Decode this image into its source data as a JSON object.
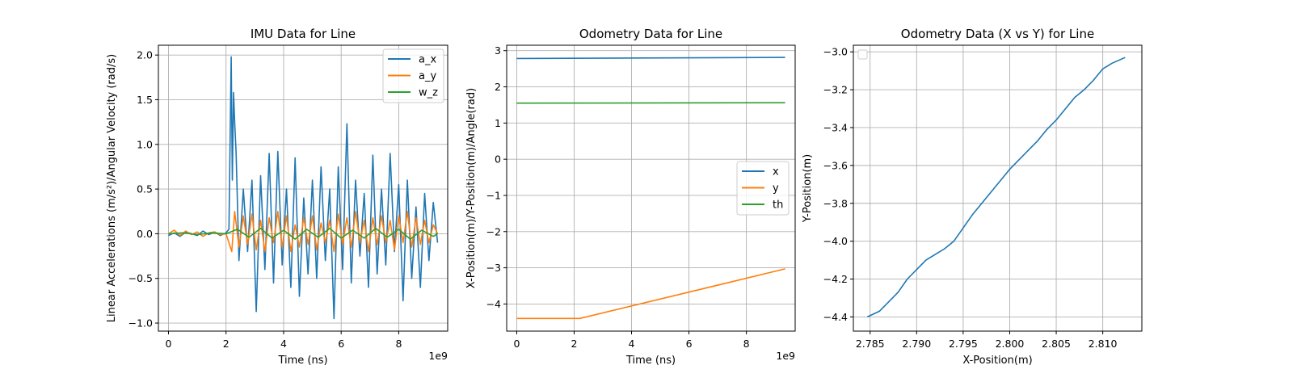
{
  "chart_data": [
    {
      "type": "line",
      "title": "IMU Data for Line",
      "xlabel": "Time (ns)",
      "ylabel": "Linear Accelerations (m/s²)/Angular Velocity (rad/s)",
      "xlim": [
        -0.35,
        9.7
      ],
      "ylim": [
        -1.09,
        2.11
      ],
      "x_scale_note": "1e9",
      "xticks": [
        0,
        2,
        4,
        6,
        8
      ],
      "xtick_labels": [
        "0",
        "2",
        "4",
        "6",
        "8"
      ],
      "yticks": [
        -1.0,
        -0.5,
        0.0,
        0.5,
        1.0,
        1.5,
        2.0
      ],
      "ytick_labels": [
        "−1.0",
        "−0.5",
        "0.0",
        "0.5",
        "1.0",
        "1.5",
        "2.0"
      ],
      "grid": true,
      "legend_position": "top-right",
      "series": [
        {
          "name": "a_x",
          "color": "#1f77b4",
          "x": [
            0,
            0.2,
            0.4,
            0.6,
            0.8,
            1.0,
            1.2,
            1.4,
            1.6,
            1.8,
            2.0,
            2.1,
            2.18,
            2.22,
            2.26,
            2.3,
            2.35,
            2.45,
            2.6,
            2.75,
            2.9,
            3.05,
            3.2,
            3.35,
            3.5,
            3.65,
            3.8,
            3.95,
            4.1,
            4.25,
            4.4,
            4.55,
            4.7,
            4.85,
            5.0,
            5.15,
            5.3,
            5.45,
            5.6,
            5.75,
            5.9,
            6.05,
            6.2,
            6.35,
            6.5,
            6.65,
            6.8,
            6.95,
            7.1,
            7.25,
            7.4,
            7.55,
            7.7,
            7.85,
            8.0,
            8.15,
            8.3,
            8.45,
            8.6,
            8.75,
            8.9,
            9.05,
            9.2,
            9.35
          ],
          "y": [
            -0.02,
            0.01,
            -0.03,
            0.02,
            0.0,
            -0.02,
            0.03,
            -0.01,
            0.02,
            -0.02,
            0.01,
            0.05,
            1.98,
            0.6,
            1.58,
            1.25,
            0.9,
            -0.3,
            0.5,
            -0.2,
            0.6,
            -0.87,
            0.65,
            -0.4,
            0.9,
            -0.55,
            0.92,
            -0.35,
            0.5,
            -0.6,
            0.85,
            -0.7,
            0.4,
            -0.45,
            0.6,
            -0.5,
            0.75,
            -0.3,
            0.5,
            -0.95,
            0.75,
            -0.4,
            1.23,
            -0.55,
            0.6,
            -0.25,
            0.45,
            -0.6,
            0.88,
            -0.45,
            0.5,
            -0.35,
            0.9,
            -0.2,
            0.55,
            -0.75,
            0.6,
            -0.5,
            0.3,
            -0.6,
            0.45,
            -0.3,
            0.35,
            -0.1
          ]
        },
        {
          "name": "a_y",
          "color": "#ff7f0e",
          "x": [
            0,
            0.2,
            0.4,
            0.6,
            0.8,
            1.0,
            1.2,
            1.4,
            1.6,
            1.8,
            2.0,
            2.2,
            2.3,
            2.45,
            2.6,
            2.75,
            2.9,
            3.05,
            3.2,
            3.35,
            3.5,
            3.65,
            3.8,
            3.95,
            4.1,
            4.25,
            4.4,
            4.55,
            4.7,
            4.85,
            5.0,
            5.15,
            5.3,
            5.45,
            5.6,
            5.75,
            5.9,
            6.05,
            6.2,
            6.35,
            6.5,
            6.65,
            6.8,
            6.95,
            7.1,
            7.25,
            7.4,
            7.55,
            7.7,
            7.85,
            8.0,
            8.15,
            8.3,
            8.45,
            8.6,
            8.75,
            8.9,
            9.05,
            9.2,
            9.35
          ],
          "y": [
            0.0,
            0.04,
            -0.02,
            0.03,
            -0.01,
            0.02,
            -0.03,
            0.01,
            0.02,
            -0.01,
            0.0,
            -0.2,
            0.25,
            -0.15,
            0.2,
            -0.12,
            0.22,
            -0.18,
            0.15,
            -0.2,
            0.18,
            -0.1,
            0.25,
            -0.15,
            0.2,
            -0.2,
            0.1,
            -0.15,
            0.18,
            -0.12,
            0.2,
            -0.18,
            0.12,
            -0.1,
            0.15,
            -0.2,
            0.22,
            -0.12,
            0.18,
            -0.15,
            0.25,
            -0.1,
            0.15,
            -0.2,
            0.18,
            -0.12,
            0.2,
            -0.1,
            0.15,
            -0.18,
            0.2,
            -0.1,
            0.25,
            -0.15,
            0.18,
            -0.12,
            0.15,
            -0.1,
            0.1,
            0.0
          ]
        },
        {
          "name": "w_z",
          "color": "#2ca02c",
          "x": [
            0,
            0.5,
            1.0,
            1.5,
            2.0,
            2.4,
            2.8,
            3.2,
            3.6,
            4.0,
            4.4,
            4.8,
            5.2,
            5.6,
            6.0,
            6.4,
            6.8,
            7.2,
            7.6,
            8.0,
            8.4,
            8.8,
            9.2,
            9.35
          ],
          "y": [
            0.0,
            0.01,
            -0.01,
            0.01,
            0.0,
            0.05,
            -0.04,
            0.06,
            -0.05,
            0.04,
            -0.06,
            0.05,
            -0.04,
            0.06,
            -0.05,
            0.04,
            -0.05,
            0.06,
            -0.04,
            0.05,
            -0.06,
            0.04,
            -0.03,
            0.0
          ]
        }
      ]
    },
    {
      "type": "line",
      "title": "Odometry Data for Line",
      "xlabel": "Time (ns)",
      "ylabel": "X-Position(m)/Y-Position(m)/Angle(rad)",
      "xlim": [
        -0.35,
        9.7
      ],
      "ylim": [
        -4.75,
        3.15
      ],
      "x_scale_note": "1e9",
      "xticks": [
        0,
        2,
        4,
        6,
        8
      ],
      "xtick_labels": [
        "0",
        "2",
        "4",
        "6",
        "8"
      ],
      "yticks": [
        -4,
        -3,
        -2,
        -1,
        0,
        1,
        2,
        3
      ],
      "ytick_labels": [
        "−4",
        "−3",
        "−2",
        "−1",
        "0",
        "1",
        "2",
        "3"
      ],
      "grid": true,
      "legend_position": "center-right",
      "series": [
        {
          "name": "x",
          "color": "#1f77b4",
          "x": [
            0,
            9.35
          ],
          "y": [
            2.785,
            2.812
          ]
        },
        {
          "name": "y",
          "color": "#ff7f0e",
          "x": [
            0,
            2.2,
            9.35
          ],
          "y": [
            -4.4,
            -4.4,
            -3.03
          ]
        },
        {
          "name": "th",
          "color": "#2ca02c",
          "x": [
            0,
            9.35
          ],
          "y": [
            1.55,
            1.56
          ]
        }
      ]
    },
    {
      "type": "line",
      "title": "Odometry Data (X vs Y) for Line",
      "xlabel": "X-Position(m)",
      "ylabel": "Y-Position(m)",
      "xlim": [
        2.7832,
        2.8142
      ],
      "ylim": [
        -4.475,
        -2.965
      ],
      "xticks": [
        2.785,
        2.79,
        2.795,
        2.8,
        2.805,
        2.81
      ],
      "xtick_labels": [
        "2.785",
        "2.790",
        "2.795",
        "2.800",
        "2.805",
        "2.810"
      ],
      "yticks": [
        -4.4,
        -4.2,
        -4.0,
        -3.8,
        -3.6,
        -3.4,
        -3.2,
        -3.0
      ],
      "ytick_labels": [
        "−4.4",
        "−4.2",
        "−4.0",
        "−3.8",
        "−3.6",
        "−3.4",
        "−3.2",
        "−3.0"
      ],
      "grid": true,
      "legend_position": "top-left",
      "series": [
        {
          "color": "#1f77b4",
          "x": [
            2.7847,
            2.786,
            2.787,
            2.788,
            2.789,
            2.79,
            2.791,
            2.792,
            2.793,
            2.794,
            2.795,
            2.796,
            2.797,
            2.798,
            2.799,
            2.8,
            2.801,
            2.802,
            2.803,
            2.804,
            2.805,
            2.806,
            2.807,
            2.808,
            2.809,
            2.81,
            2.811,
            2.8124
          ],
          "y": [
            -4.4,
            -4.37,
            -4.32,
            -4.27,
            -4.2,
            -4.15,
            -4.1,
            -4.07,
            -4.04,
            -4.0,
            -3.93,
            -3.86,
            -3.8,
            -3.74,
            -3.68,
            -3.62,
            -3.57,
            -3.52,
            -3.47,
            -3.41,
            -3.36,
            -3.3,
            -3.24,
            -3.2,
            -3.15,
            -3.09,
            -3.06,
            -3.03
          ]
        }
      ]
    }
  ]
}
